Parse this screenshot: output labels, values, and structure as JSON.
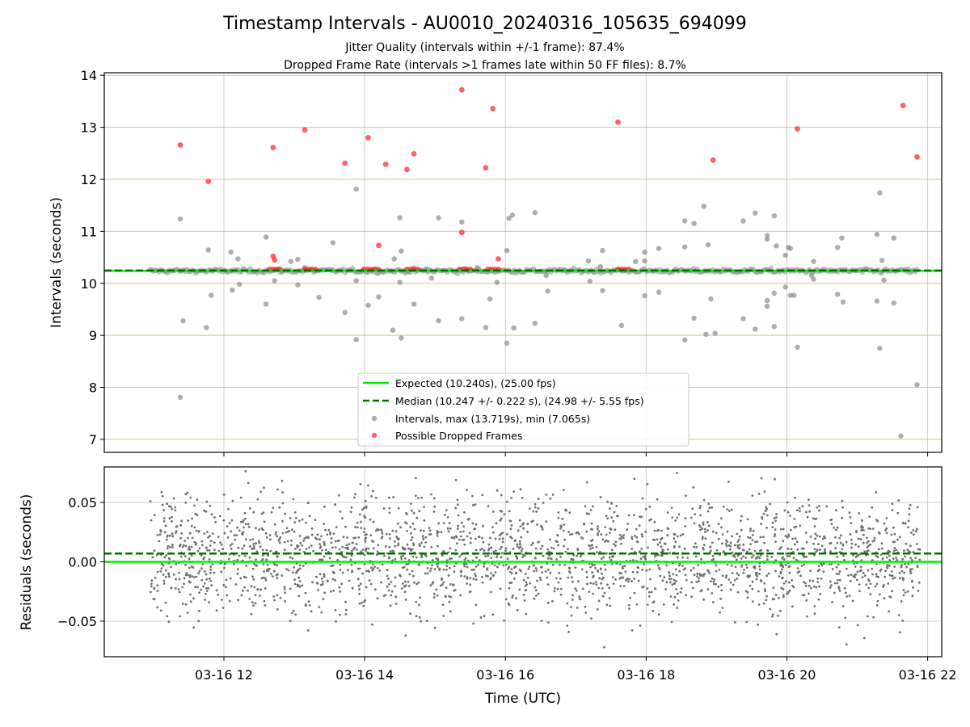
{
  "chart_data": [
    {
      "type": "scatter",
      "title": "Timestamp Intervals - AU0010_20240316_105635_694099",
      "subtitle_lines": [
        "Jitter Quality (intervals within +/-1 frame): 87.4%",
        "Dropped Frame Rate (intervals >1 frames late within 50 FF files): 8.7%"
      ],
      "ylabel": "Intervals (seconds)",
      "xlim": [
        10.3,
        22.2
      ],
      "ylim": [
        6.75,
        14.05
      ],
      "x_unit": "hours UTC on 2024-03-16",
      "yticks": [
        7,
        8,
        9,
        10,
        11,
        12,
        13,
        14
      ],
      "ytick_labels": [
        "7",
        "8",
        "9",
        "10",
        "11",
        "12",
        "13",
        "14"
      ],
      "grid": {
        "vertical": true,
        "horizontal_frame_lines": true
      },
      "reference_lines": [
        {
          "name": "Expected (10.240s), (25.00 fps)",
          "y": 10.24,
          "color": "#00ee00",
          "style": "solid"
        },
        {
          "name": "Median (10.247 +/- 0.222 s), (24.98 +/- 5.55 fps)",
          "y": 10.247,
          "color": "#007000",
          "style": "dashed"
        }
      ],
      "legend": {
        "position": "bottom-center",
        "entries": [
          "Expected (10.240s), (25.00 fps)",
          "Median (10.247 +/- 0.222 s), (24.98 +/- 5.55 fps)",
          "Intervals, max (13.719s), min (7.065s)",
          "Possible Dropped Frames"
        ]
      },
      "series": [
        {
          "name": "Intervals, max (13.719s), min (7.065s)",
          "color": "#8c8c8c",
          "baseline_value": 10.24,
          "x_range": [
            10.95,
            21.85
          ],
          "outlier_points": [
            [
              11.38,
              11.24
            ],
            [
              11.42,
              9.28
            ],
            [
              11.38,
              7.81
            ],
            [
              11.75,
              9.15
            ],
            [
              11.78,
              10.64
            ],
            [
              11.82,
              9.77
            ],
            [
              12.1,
              10.6
            ],
            [
              12.12,
              9.87
            ],
            [
              12.22,
              9.98
            ],
            [
              12.2,
              10.47
            ],
            [
              12.6,
              10.89
            ],
            [
              12.6,
              9.6
            ],
            [
              12.72,
              10.05
            ],
            [
              12.95,
              10.42
            ],
            [
              13.05,
              10.46
            ],
            [
              13.05,
              9.97
            ],
            [
              13.35,
              9.73
            ],
            [
              13.55,
              10.78
            ],
            [
              13.72,
              9.44
            ],
            [
              13.88,
              8.92
            ],
            [
              13.88,
              11.81
            ],
            [
              13.88,
              10.05
            ],
            [
              14.05,
              9.58
            ],
            [
              14.2,
              9.74
            ],
            [
              14.4,
              9.1
            ],
            [
              14.42,
              10.47
            ],
            [
              14.5,
              10.02
            ],
            [
              14.52,
              8.95
            ],
            [
              14.5,
              11.26
            ],
            [
              14.52,
              10.62
            ],
            [
              14.7,
              9.6
            ],
            [
              14.88,
              10.28
            ],
            [
              14.95,
              10.1
            ],
            [
              15.05,
              9.28
            ],
            [
              15.05,
              11.26
            ],
            [
              15.38,
              9.32
            ],
            [
              15.38,
              11.18
            ],
            [
              15.72,
              9.15
            ],
            [
              15.78,
              9.7
            ],
            [
              15.88,
              10.02
            ],
            [
              16.02,
              10.63
            ],
            [
              16.05,
              11.25
            ],
            [
              16.1,
              11.31
            ],
            [
              16.02,
              8.85
            ],
            [
              16.12,
              9.14
            ],
            [
              16.42,
              11.36
            ],
            [
              16.42,
              9.23
            ],
            [
              16.58,
              10.15
            ],
            [
              16.6,
              9.85
            ],
            [
              16.85,
              10.25
            ],
            [
              17.18,
              10.43
            ],
            [
              17.2,
              10.04
            ],
            [
              17.35,
              10.32
            ],
            [
              17.38,
              9.86
            ],
            [
              17.38,
              10.63
            ],
            [
              17.65,
              9.19
            ],
            [
              17.85,
              10.42
            ],
            [
              17.98,
              10.6
            ],
            [
              17.98,
              10.43
            ],
            [
              17.98,
              9.76
            ],
            [
              18.18,
              9.83
            ],
            [
              18.18,
              10.67
            ],
            [
              18.55,
              10.7
            ],
            [
              18.55,
              11.2
            ],
            [
              18.55,
              8.91
            ],
            [
              18.68,
              11.15
            ],
            [
              18.68,
              9.33
            ],
            [
              18.82,
              11.48
            ],
            [
              18.85,
              9.02
            ],
            [
              18.88,
              10.74
            ],
            [
              18.98,
              9.04
            ],
            [
              18.92,
              9.7
            ],
            [
              19.38,
              11.2
            ],
            [
              19.38,
              9.32
            ],
            [
              19.55,
              11.35
            ],
            [
              19.55,
              9.12
            ],
            [
              19.72,
              10.92
            ],
            [
              19.72,
              10.85
            ],
            [
              19.72,
              9.67
            ],
            [
              19.72,
              9.56
            ],
            [
              19.82,
              11.3
            ],
            [
              19.82,
              9.17
            ],
            [
              19.82,
              9.81
            ],
            [
              19.85,
              10.72
            ],
            [
              19.98,
              10.54
            ],
            [
              19.98,
              9.93
            ],
            [
              20.02,
              10.69
            ],
            [
              20.05,
              10.67
            ],
            [
              20.05,
              9.77
            ],
            [
              20.1,
              9.77
            ],
            [
              20.15,
              8.77
            ],
            [
              20.35,
              10.15
            ],
            [
              20.38,
              10.42
            ],
            [
              20.38,
              10.08
            ],
            [
              20.72,
              9.79
            ],
            [
              20.72,
              10.69
            ],
            [
              20.78,
              10.87
            ],
            [
              20.8,
              9.64
            ],
            [
              21.28,
              10.94
            ],
            [
              21.28,
              9.66
            ],
            [
              21.32,
              11.74
            ],
            [
              21.32,
              8.75
            ],
            [
              21.35,
              10.44
            ],
            [
              21.38,
              10.06
            ],
            [
              21.52,
              10.87
            ],
            [
              21.52,
              9.62
            ],
            [
              21.62,
              7.065
            ],
            [
              21.85,
              8.05
            ],
            [
              13.15,
              10.3
            ],
            [
              15.6,
              10.3
            ]
          ]
        },
        {
          "name": "Possible Dropped Frames",
          "color": "#ff2020",
          "points": [
            [
              11.38,
              12.66
            ],
            [
              11.78,
              11.96
            ],
            [
              12.7,
              12.61
            ],
            [
              12.7,
              10.52
            ],
            [
              12.72,
              10.45
            ],
            [
              13.15,
              12.95
            ],
            [
              13.72,
              12.31
            ],
            [
              14.05,
              12.8
            ],
            [
              14.2,
              10.73
            ],
            [
              14.3,
              12.29
            ],
            [
              14.6,
              12.19
            ],
            [
              14.7,
              12.49
            ],
            [
              15.38,
              13.72
            ],
            [
              15.38,
              10.98
            ],
            [
              15.72,
              12.22
            ],
            [
              15.82,
              13.36
            ],
            [
              15.9,
              10.47
            ],
            [
              17.6,
              13.1
            ],
            [
              18.95,
              12.37
            ],
            [
              20.15,
              12.97
            ],
            [
              21.65,
              13.42
            ],
            [
              21.85,
              12.43
            ],
            [
              12.65,
              10.27
            ],
            [
              12.7,
              10.27
            ],
            [
              12.75,
              10.27
            ],
            [
              12.8,
              10.27
            ],
            [
              13.15,
              10.27
            ],
            [
              13.2,
              10.27
            ],
            [
              13.25,
              10.27
            ],
            [
              13.3,
              10.27
            ],
            [
              13.99,
              10.27
            ],
            [
              14.04,
              10.27
            ],
            [
              14.09,
              10.27
            ],
            [
              14.14,
              10.27
            ],
            [
              14.19,
              10.27
            ],
            [
              14.6,
              10.27
            ],
            [
              14.65,
              10.27
            ],
            [
              14.7,
              10.27
            ],
            [
              14.75,
              10.27
            ],
            [
              15.35,
              10.27
            ],
            [
              15.4,
              10.27
            ],
            [
              15.45,
              10.27
            ],
            [
              15.5,
              10.27
            ],
            [
              15.75,
              10.27
            ],
            [
              15.8,
              10.27
            ],
            [
              15.85,
              10.27
            ],
            [
              15.9,
              10.27
            ],
            [
              17.6,
              10.27
            ],
            [
              17.65,
              10.27
            ],
            [
              17.7,
              10.27
            ],
            [
              17.75,
              10.27
            ]
          ]
        }
      ]
    },
    {
      "type": "scatter",
      "ylabel": "Residuals (seconds)",
      "xlabel": "Time (UTC)",
      "xlim": [
        10.3,
        22.2
      ],
      "ylim": [
        -0.08,
        0.08
      ],
      "xticks": [
        12,
        14,
        16,
        18,
        20,
        22
      ],
      "xtick_labels": [
        "03-16 12",
        "03-16 14",
        "03-16 16",
        "03-16 18",
        "03-16 20",
        "03-16 22"
      ],
      "yticks": [
        -0.05,
        0.0,
        0.05
      ],
      "ytick_labels": [
        "−0.05",
        "0.00",
        "0.05"
      ],
      "grid": {
        "vertical": true,
        "horizontal": true
      },
      "reference_lines": [
        {
          "y": 0.0,
          "color": "#00ee00",
          "style": "solid"
        },
        {
          "y": 0.007,
          "color": "#007000",
          "style": "dashed"
        }
      ],
      "series": [
        {
          "color": "#707070",
          "x_range": [
            10.95,
            21.9
          ],
          "approx_point_count": 2400,
          "spread_std": 0.025,
          "value_range": [
            -0.08,
            0.077
          ]
        }
      ]
    }
  ]
}
